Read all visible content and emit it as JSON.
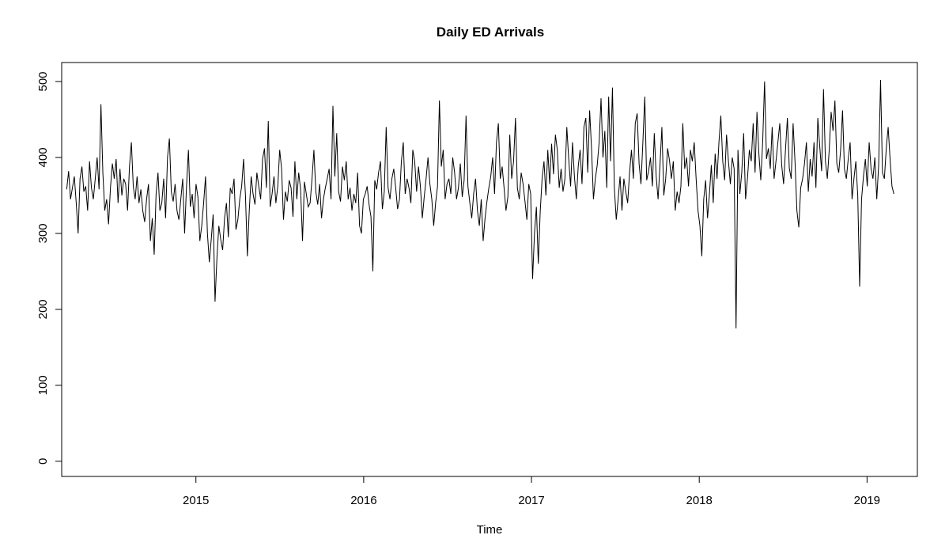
{
  "chart_data": {
    "type": "line",
    "title": "Daily ED Arrivals",
    "xlabel": "Time",
    "ylabel": "",
    "xlim": [
      2014.2,
      2019.3
    ],
    "ylim": [
      -20,
      525
    ],
    "x_ticks": [
      2015,
      2016,
      2017,
      2018,
      2019
    ],
    "y_ticks": [
      0,
      100,
      200,
      300,
      400,
      500
    ],
    "x_range": [
      2014.23,
      2019.16
    ],
    "grid": false,
    "legend": "none",
    "line_color": "#000000",
    "series": [
      {
        "values": [
          358,
          382,
          345,
          360,
          375,
          340,
          300,
          372,
          388,
          355,
          362,
          330,
          395,
          360,
          345,
          372,
          400,
          358,
          470,
          380,
          330,
          345,
          312,
          360,
          392,
          372,
          398,
          340,
          385,
          350,
          372,
          365,
          330,
          388,
          420,
          362,
          345,
          375,
          340,
          358,
          330,
          315,
          345,
          365,
          290,
          320,
          272,
          352,
          380,
          330,
          340,
          372,
          320,
          400,
          425,
          355,
          342,
          365,
          330,
          318,
          345,
          372,
          300,
          362,
          410,
          335,
          352,
          320,
          365,
          348,
          290,
          310,
          340,
          375,
          300,
          262,
          292,
          325,
          210,
          268,
          310,
          292,
          278,
          320,
          340,
          295,
          360,
          352,
          372,
          305,
          318,
          345,
          362,
          398,
          350,
          270,
          330,
          375,
          352,
          338,
          380,
          362,
          345,
          398,
          412,
          360,
          448,
          335,
          352,
          375,
          340,
          362,
          410,
          385,
          318,
          355,
          342,
          370,
          360,
          322,
          395,
          345,
          380,
          358,
          290,
          368,
          352,
          335,
          340,
          372,
          410,
          355,
          338,
          365,
          320,
          345,
          360,
          372,
          385,
          345,
          468,
          375,
          432,
          355,
          342,
          388,
          370,
          395,
          345,
          360,
          330,
          352,
          340,
          380,
          310,
          300,
          345,
          352,
          362,
          338,
          322,
          250,
          370,
          358,
          380,
          395,
          332,
          355,
          440,
          360,
          345,
          372,
          385,
          360,
          332,
          345,
          395,
          420,
          352,
          372,
          360,
          340,
          410,
          395,
          355,
          388,
          362,
          320,
          348,
          372,
          400,
          365,
          345,
          310,
          340,
          362,
          475,
          388,
          410,
          345,
          365,
          372,
          352,
          400,
          380,
          345,
          360,
          392,
          348,
          370,
          455,
          362,
          340,
          320,
          352,
          372,
          330,
          310,
          345,
          290,
          320,
          342,
          360,
          375,
          400,
          352,
          420,
          445,
          372,
          388,
          360,
          330,
          348,
          430,
          372,
          395,
          452,
          360,
          345,
          380,
          365,
          342,
          318,
          365,
          352,
          240,
          300,
          335,
          260,
          328,
          372,
          395,
          350,
          410,
          365,
          418,
          378,
          430,
          410,
          360,
          385,
          355,
          372,
          440,
          398,
          362,
          420,
          375,
          345,
          388,
          410,
          365,
          440,
          452,
          380,
          462,
          412,
          345,
          372,
          390,
          420,
          478,
          400,
          435,
          360,
          480,
          395,
          492,
          360,
          318,
          345,
          375,
          330,
          372,
          355,
          340,
          380,
          410,
          372,
          445,
          458,
          392,
          365,
          420,
          480,
          370,
          382,
          400,
          362,
          432,
          375,
          345,
          390,
          440,
          350,
          372,
          412,
          396,
          372,
          395,
          330,
          355,
          340,
          362,
          445,
          385,
          400,
          362,
          410,
          395,
          420,
          372,
          330,
          310,
          270,
          345,
          370,
          320,
          352,
          390,
          340,
          405,
          372,
          420,
          455,
          395,
          370,
          430,
          395,
          365,
          400,
          385,
          175,
          410,
          352,
          380,
          432,
          345,
          372,
          410,
          395,
          445,
          380,
          460,
          405,
          370,
          420,
          500,
          398,
          412,
          385,
          440,
          372,
          395,
          420,
          445,
          390,
          365,
          410,
          452,
          386,
          372,
          445,
          395,
          330,
          308,
          360,
          372,
          392,
          420,
          355,
          398,
          375,
          420,
          360,
          452,
          415,
          382,
          490,
          395,
          372,
          410,
          460,
          435,
          475,
          392,
          380,
          410,
          462,
          385,
          372,
          398,
          420,
          345,
          372,
          395,
          350,
          230,
          345,
          375,
          398,
          362,
          420,
          385,
          372,
          400,
          345,
          390,
          502,
          380,
          372,
          412,
          440,
          398,
          362,
          352
        ]
      }
    ]
  }
}
